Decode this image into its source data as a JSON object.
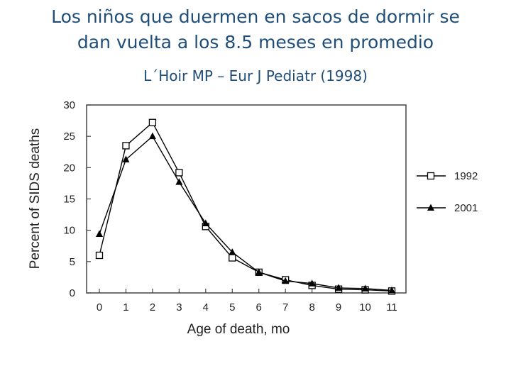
{
  "slide": {
    "title_line1": "Los niños que duermen en sacos de dormir se",
    "title_line2": "dan vuelta a los 8.5 meses en promedio",
    "citation": "L´Hoir MP – Eur J Pediatr (1998)"
  },
  "chart_data": {
    "type": "line",
    "title": "",
    "xlabel": "Age of death, mo",
    "ylabel": "Percent of SIDS deaths",
    "x": [
      0,
      1,
      2,
      3,
      4,
      5,
      6,
      7,
      8,
      9,
      10,
      11
    ],
    "xlim": [
      0,
      11
    ],
    "ylim": [
      0,
      30
    ],
    "yticks": [
      0,
      5,
      10,
      15,
      20,
      25,
      30
    ],
    "grid": false,
    "legend_position": "right",
    "series": [
      {
        "name": "1992",
        "marker": "open-square",
        "color": "#000000",
        "values": [
          6,
          23.5,
          27.2,
          19.2,
          10.6,
          5.6,
          3.3,
          2.1,
          1.2,
          0.6,
          0.5,
          0.3
        ]
      },
      {
        "name": "2001",
        "marker": "filled-triangle",
        "color": "#000000",
        "values": [
          9.4,
          21.3,
          25,
          17.7,
          11.1,
          6.5,
          3.3,
          1.9,
          1.5,
          0.8,
          0.7,
          0.4
        ]
      }
    ]
  }
}
